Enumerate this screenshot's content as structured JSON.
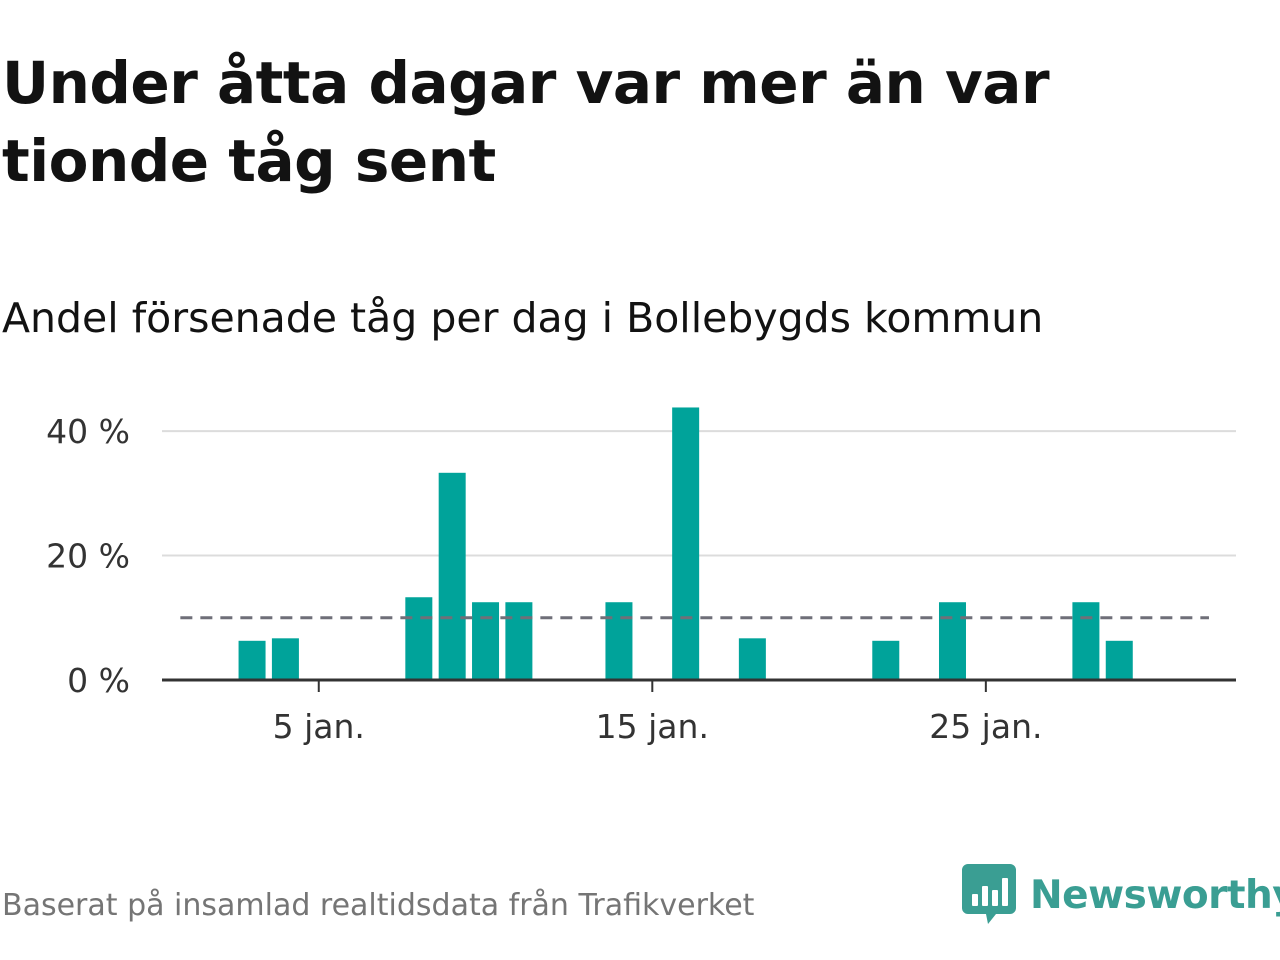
{
  "header": {
    "title": "Under åtta dagar var mer än var tionde tåg sent",
    "subtitle": "Andel försenade tåg per dag i Bollebygds kommun"
  },
  "footer": {
    "source": "Baserat på insamlad realtidsdata från Trafikverket",
    "brand": "Newsworthy"
  },
  "colors": {
    "bar": "#00a39a",
    "reference_line": "#6f6f78",
    "grid": "#dcdcdc",
    "axis": "#333333",
    "brand": "#3a9e93"
  },
  "chart_data": {
    "type": "bar",
    "x": [
      "3 jan.",
      "4 jan.",
      "8 jan.",
      "9 jan.",
      "10 jan.",
      "11 jan.",
      "14 jan.",
      "16 jan.",
      "18 jan.",
      "22 jan.",
      "24 jan.",
      "28 jan.",
      "29 jan."
    ],
    "values": [
      6.3,
      6.7,
      13.3,
      33.3,
      12.5,
      12.5,
      12.5,
      43.8,
      6.7,
      6.3,
      12.5,
      12.5,
      6.3
    ],
    "unit": "%",
    "x_domain": [
      "1 jan.",
      "31 jan."
    ],
    "x_ticks": [
      "5 jan.",
      "15 jan.",
      "25 jan."
    ],
    "y_ticks": [
      {
        "value": 0,
        "label": "0 %"
      },
      {
        "value": 20,
        "label": "20 %"
      },
      {
        "value": 40,
        "label": "40 %"
      }
    ],
    "ylim": [
      0,
      45
    ],
    "reference_line": {
      "value": 10,
      "style": "dashed"
    },
    "grid": true,
    "legend": "none",
    "xlabel": "",
    "ylabel": ""
  }
}
